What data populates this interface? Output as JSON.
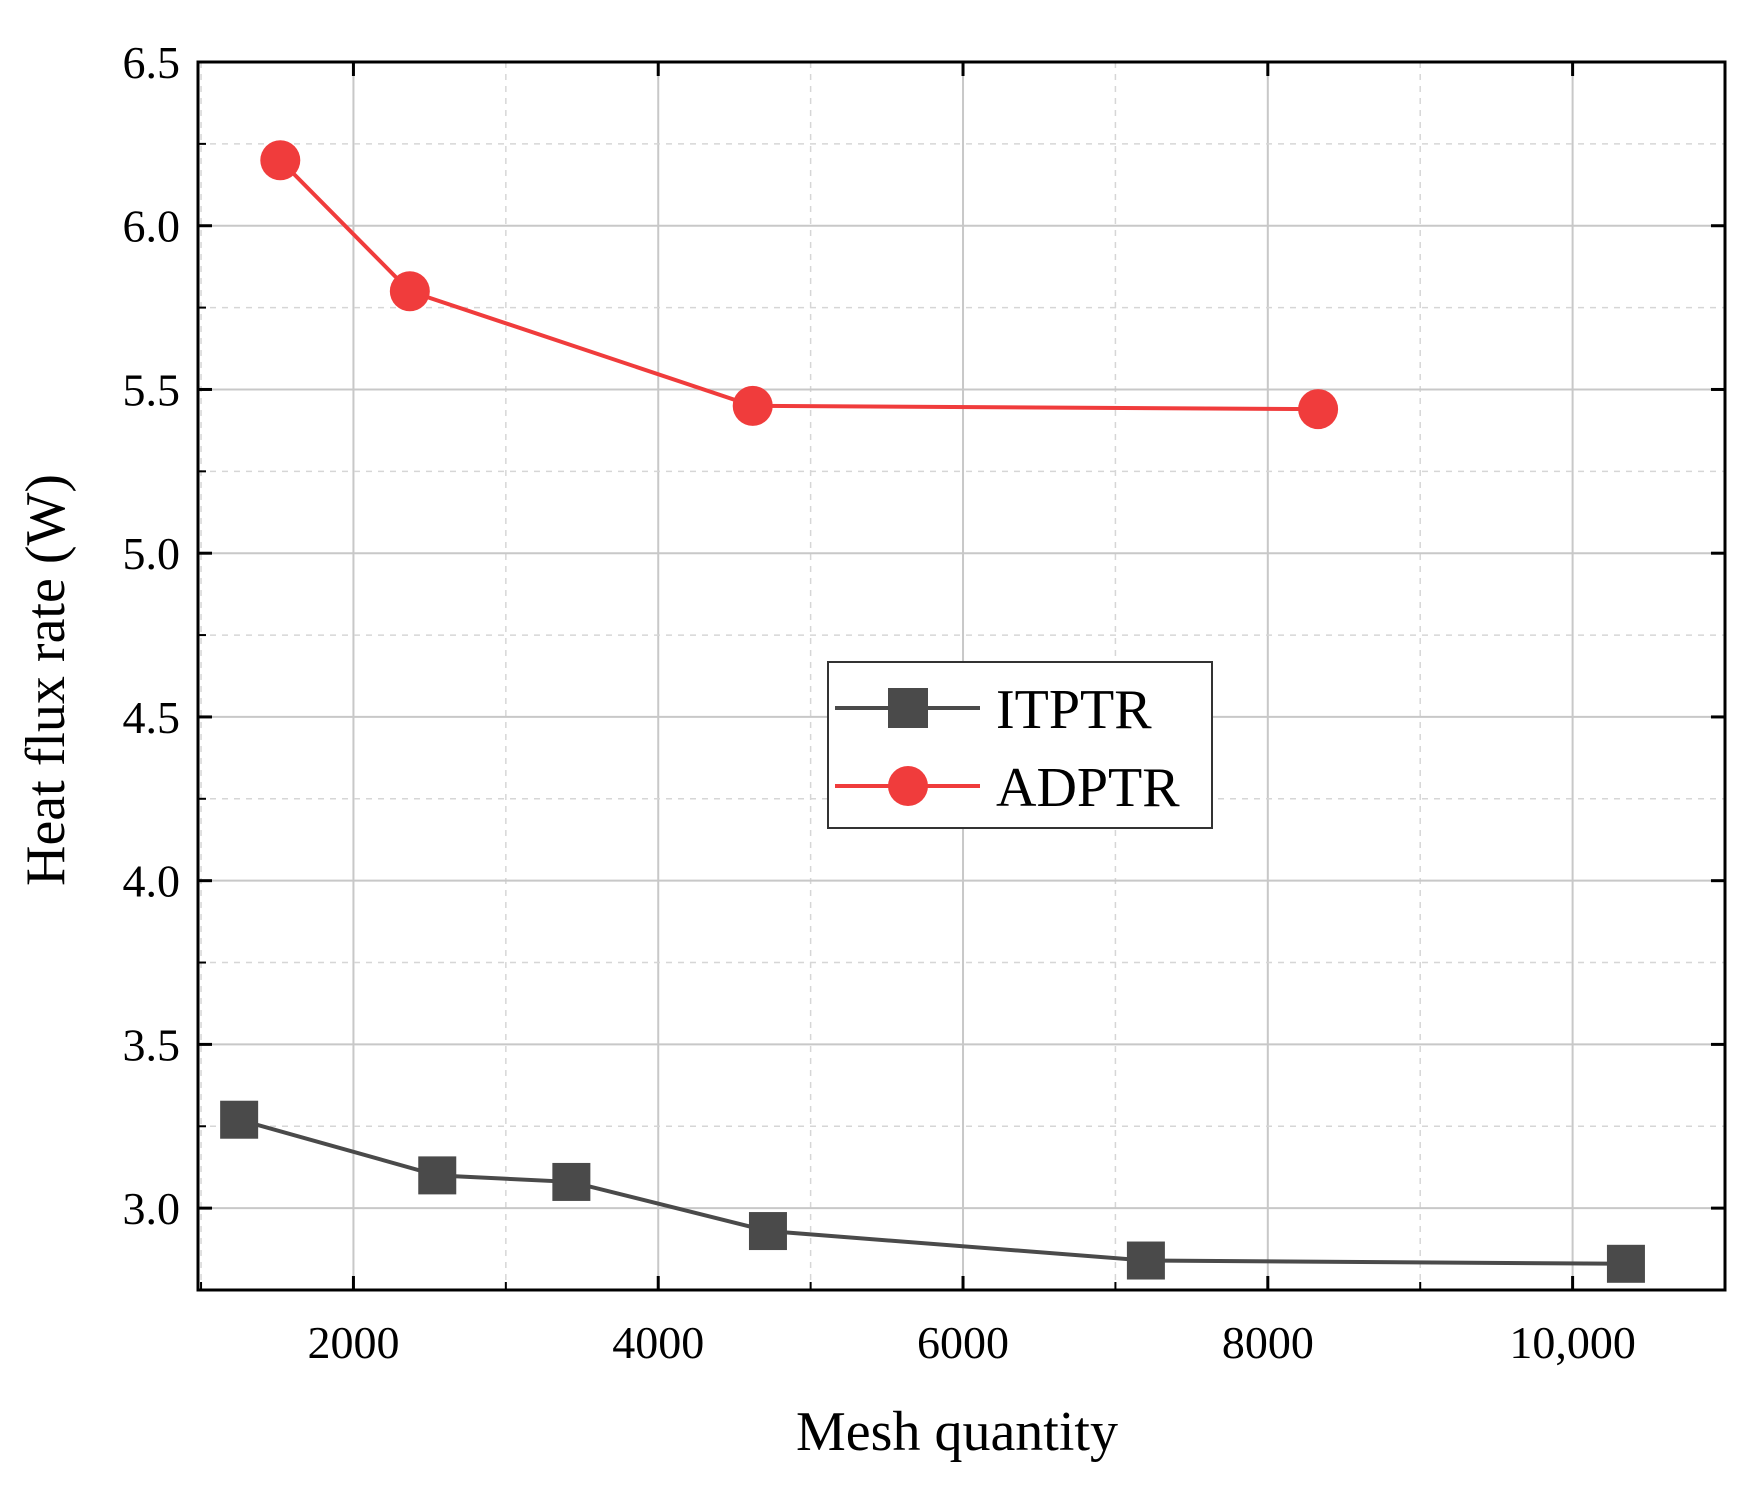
{
  "chart_data": {
    "type": "line",
    "xlabel": "Mesh quantity",
    "ylabel": "Heat flux rate (W)",
    "xlim": [
      980,
      11000
    ],
    "ylim": [
      2.75,
      6.5
    ],
    "x_ticks": [
      2000,
      4000,
      6000,
      8000,
      10000
    ],
    "x_tick_labels": [
      "2000",
      "4000",
      "6000",
      "8000",
      "10,000"
    ],
    "y_ticks": [
      3.0,
      3.5,
      4.0,
      4.5,
      5.0,
      5.5,
      6.0,
      6.5
    ],
    "y_tick_labels": [
      "3.0",
      "3.5",
      "4.0",
      "4.5",
      "5.0",
      "5.5",
      "6.0",
      "6.5"
    ],
    "grid": true,
    "legend_position": "center",
    "series": [
      {
        "name": "ITPTR",
        "marker": "square",
        "color": "#4a4a4a",
        "x": [
          1250,
          2550,
          3430,
          4720,
          7200,
          10350
        ],
        "y": [
          3.27,
          3.1,
          3.08,
          2.93,
          2.84,
          2.83
        ]
      },
      {
        "name": "ADPTR",
        "marker": "circle",
        "color": "#f03c3c",
        "x": [
          1520,
          2370,
          4620,
          8330
        ],
        "y": [
          6.2,
          5.8,
          5.45,
          5.44
        ]
      }
    ]
  }
}
